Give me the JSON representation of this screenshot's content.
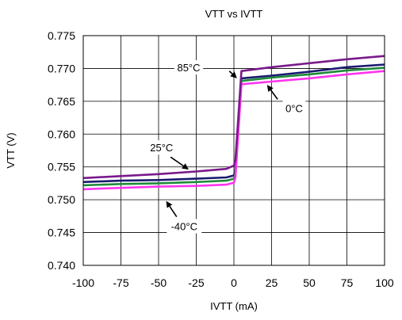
{
  "chart_data": {
    "type": "line",
    "title": "VTT vs IVTT",
    "xlabel": "IVTT (mA)",
    "ylabel": "VTT (V)",
    "xlim": [
      -100,
      100
    ],
    "ylim": [
      0.74,
      0.775
    ],
    "xticks": [
      -100,
      -75,
      -50,
      -25,
      0,
      25,
      50,
      75,
      100
    ],
    "yticks": [
      0.74,
      0.745,
      0.75,
      0.755,
      0.76,
      0.765,
      0.77,
      0.775
    ],
    "xtick_labels": [
      "-100",
      "-75",
      "-50",
      "-25",
      "0",
      "25",
      "50",
      "75",
      "100"
    ],
    "ytick_labels": [
      "0.740",
      "0.745",
      "0.750",
      "0.755",
      "0.760",
      "0.765",
      "0.770",
      "0.775"
    ],
    "grid": true,
    "legend": "none",
    "series": [
      {
        "color": "#1a1a70",
        "x": [
          -100,
          -75,
          -50,
          -25,
          -5,
          0,
          1,
          5,
          25,
          50,
          75,
          100
        ],
        "y": [
          0.7527,
          0.7529,
          0.753,
          0.7532,
          0.7534,
          0.7537,
          0.7545,
          0.7685,
          0.7689,
          0.7695,
          0.7702,
          0.7706
        ]
      },
      {
        "color": "#1f8a3a",
        "x": [
          -100,
          -75,
          -50,
          -25,
          -5,
          0,
          1,
          5,
          25,
          50,
          75,
          100
        ],
        "y": [
          0.7522,
          0.7524,
          0.7525,
          0.7527,
          0.7529,
          0.7532,
          0.754,
          0.7681,
          0.7686,
          0.7691,
          0.7697,
          0.7701
        ]
      },
      {
        "color": "#ff33ee",
        "x": [
          -100,
          -75,
          -50,
          -25,
          -5,
          0,
          1,
          5,
          25,
          50,
          75,
          100
        ],
        "y": [
          0.7516,
          0.7518,
          0.752,
          0.7521,
          0.7523,
          0.7526,
          0.7534,
          0.7676,
          0.768,
          0.7685,
          0.7691,
          0.7696
        ]
      },
      {
        "color": "#7a1a8a",
        "x": [
          -100,
          -75,
          -50,
          -25,
          -5,
          0,
          1,
          5,
          25,
          50,
          75,
          100
        ],
        "y": [
          0.7533,
          0.7536,
          0.7539,
          0.7543,
          0.7547,
          0.7552,
          0.756,
          0.7696,
          0.7702,
          0.7708,
          0.7714,
          0.7719
        ]
      }
    ],
    "annotations": [
      {
        "text": "85°C",
        "label_at": [
          -30,
          0.7698
        ],
        "arrow_from": [
          -3,
          0.7696
        ],
        "arrow_to": [
          2,
          0.7685
        ]
      },
      {
        "text": "0°C",
        "label_at": [
          40,
          0.7636
        ],
        "arrow_from": [
          29,
          0.7653
        ],
        "arrow_to": [
          22,
          0.7675
        ]
      },
      {
        "text": "25°C",
        "label_at": [
          -48,
          0.7576
        ],
        "arrow_from": [
          -42,
          0.7565
        ],
        "arrow_to": [
          -30,
          0.7546
        ]
      },
      {
        "text": "-40°C",
        "label_at": [
          -33,
          0.7456
        ],
        "arrow_from": [
          -38,
          0.7474
        ],
        "arrow_to": [
          -45,
          0.7498
        ]
      }
    ]
  }
}
